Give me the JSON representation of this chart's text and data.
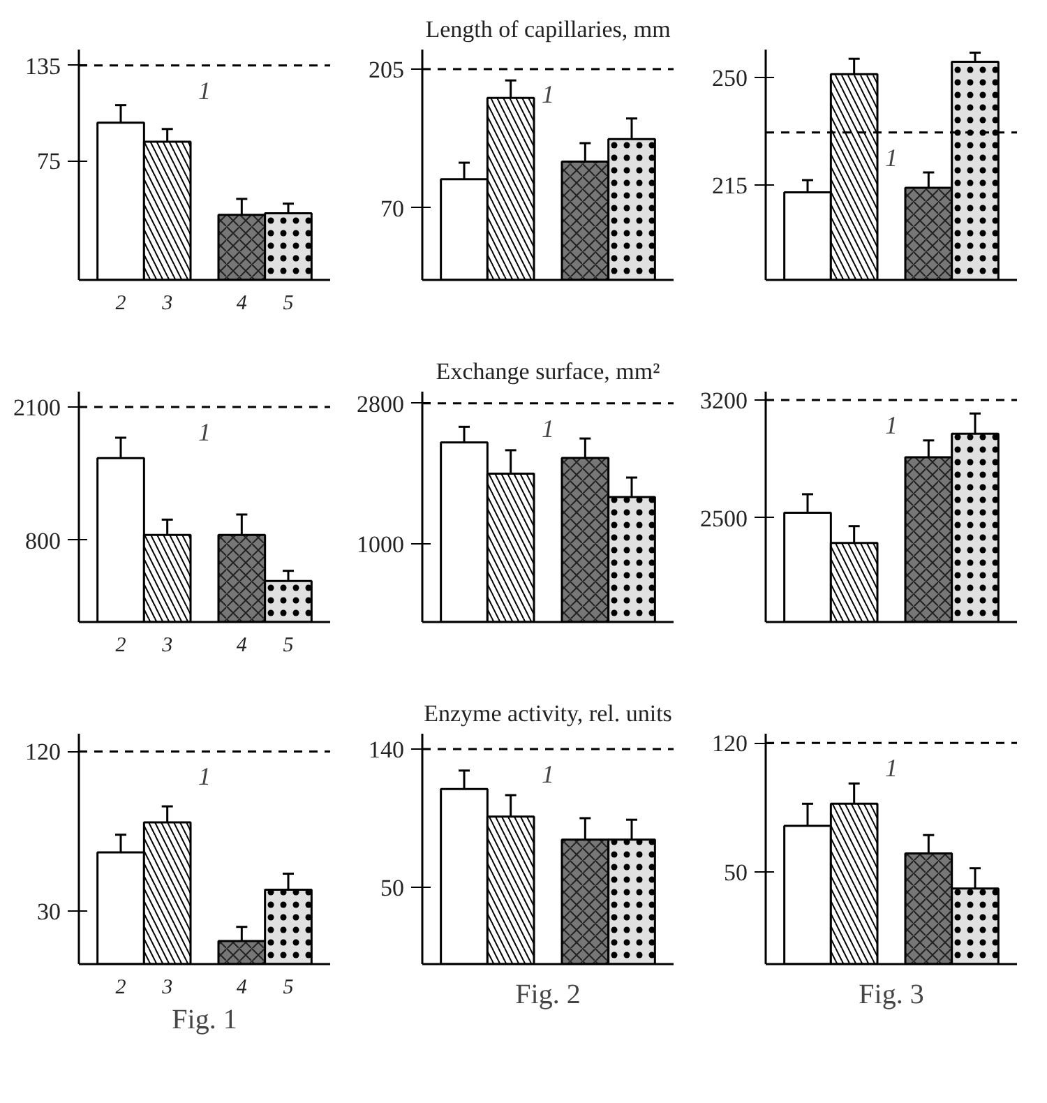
{
  "chart_data": [
    {
      "type": "bar",
      "categories": [
        "2",
        "3",
        "4",
        "5"
      ],
      "values": [
        99,
        87,
        41,
        42
      ],
      "errors": [
        [
          99,
          110
        ],
        [
          87,
          95
        ],
        [
          41,
          51
        ],
        [
          42,
          48
        ]
      ],
      "colors": [
        "#ffffff",
        "#ffffff",
        "#777777",
        "#e0e0e0"
      ],
      "ylim": [
        0,
        145
      ],
      "yticks": [
        75,
        135
      ],
      "ref_lines": [
        {
          "axis": "y",
          "value": 135,
          "line_style": "dashed"
        }
      ],
      "annotations": [
        {
          "text": "1",
          "y": 135
        }
      ],
      "grid": false
    },
    {
      "type": "bar",
      "title": "Length of capillaries, mm",
      "categories": [
        null,
        null,
        null,
        null
      ],
      "values": [
        98,
        177,
        115,
        137
      ],
      "errors": [
        [
          98,
          114
        ],
        [
          177,
          194
        ],
        [
          115,
          133
        ],
        [
          137,
          157
        ]
      ],
      "colors": [
        "#ffffff",
        "#ffffff",
        "#777777",
        "#e0e0e0"
      ],
      "ylim": [
        0,
        224
      ],
      "yticks": [
        70,
        205
      ],
      "tick_labels": "y",
      "ref_lines": [
        {
          "axis": "y",
          "value": 205,
          "line_style": "dashed"
        }
      ],
      "annotations": [
        {
          "text": "1",
          "y": 205
        }
      ],
      "grid": false
    },
    {
      "type": "bar",
      "categories": [
        null,
        null,
        null,
        null
      ],
      "values": [
        212.5,
        251,
        214,
        255
      ],
      "errors": [
        [
          212.5,
          216.5
        ],
        [
          251,
          256
        ],
        [
          214,
          219
        ],
        [
          255,
          258
        ]
      ],
      "colors": [
        "#ffffff",
        "#ffffff",
        "#777777",
        "#e0e0e0"
      ],
      "ylim": [
        184,
        259
      ],
      "yticks": [
        215,
        250
      ],
      "tick_labels": "y",
      "ref_lines": [
        {
          "axis": "y",
          "value": 232,
          "line_style": "dashed"
        }
      ],
      "annotations": [
        {
          "text": "1",
          "y": 232
        }
      ],
      "grid": false
    },
    {
      "type": "bar",
      "categories": [
        "2",
        "3",
        "4",
        "5"
      ],
      "values": [
        1600,
        850,
        850,
        400
      ],
      "errors": [
        [
          1600,
          1800
        ],
        [
          850,
          1000
        ],
        [
          850,
          1050
        ],
        [
          400,
          500
        ]
      ],
      "colors": [
        "#ffffff",
        "#ffffff",
        "#777777",
        "#e0e0e0"
      ],
      "ylim": [
        0,
        2250
      ],
      "yticks": [
        800,
        2100
      ],
      "ref_lines": [
        {
          "axis": "y",
          "value": 2100,
          "line_style": "dashed"
        }
      ],
      "annotations": [
        {
          "text": "1",
          "y": 2100
        }
      ],
      "grid": false
    },
    {
      "type": "bar",
      "title": "Exchange surface, mm²",
      "categories": [
        null,
        null,
        null,
        null
      ],
      "values": [
        2300,
        1900,
        2100,
        1600
      ],
      "errors": [
        [
          2300,
          2500
        ],
        [
          1900,
          2200
        ],
        [
          2100,
          2350
        ],
        [
          1600,
          1850
        ]
      ],
      "colors": [
        "#ffffff",
        "#ffffff",
        "#777777",
        "#e0e0e0"
      ],
      "ylim": [
        0,
        2950
      ],
      "yticks": [
        1000,
        2800
      ],
      "tick_labels": "y",
      "ref_lines": [
        {
          "axis": "y",
          "value": 2800,
          "line_style": "dashed"
        }
      ],
      "annotations": [
        {
          "text": "1",
          "y": 2800
        }
      ],
      "grid": false
    },
    {
      "type": "bar",
      "categories": [
        null,
        null,
        null,
        null
      ],
      "values": [
        2530,
        2350,
        2860,
        3000
      ],
      "errors": [
        [
          2530,
          2640
        ],
        [
          2350,
          2450
        ],
        [
          2860,
          2960
        ],
        [
          3000,
          3120
        ]
      ],
      "colors": [
        "#ffffff",
        "#ffffff",
        "#777777",
        "#e0e0e0"
      ],
      "ylim": [
        1880,
        3250
      ],
      "yticks": [
        2500,
        3200
      ],
      "tick_labels": "y",
      "ref_lines": [
        {
          "axis": "y",
          "value": 3200,
          "line_style": "dashed"
        }
      ],
      "annotations": [
        {
          "text": "1",
          "y": 3200
        }
      ],
      "grid": false
    },
    {
      "type": "bar",
      "xlabel": "Fig. 1",
      "categories": [
        "2",
        "3",
        "4",
        "5"
      ],
      "values": [
        63,
        80,
        13,
        42
      ],
      "errors": [
        [
          63,
          73
        ],
        [
          80,
          89
        ],
        [
          13,
          21
        ],
        [
          42,
          51
        ]
      ],
      "colors": [
        "#ffffff",
        "#ffffff",
        "#777777",
        "#e0e0e0"
      ],
      "ylim": [
        0,
        130
      ],
      "yticks": [
        30,
        120
      ],
      "ref_lines": [
        {
          "axis": "y",
          "value": 120,
          "line_style": "dashed"
        }
      ],
      "annotations": [
        {
          "text": "1",
          "y": 120
        }
      ],
      "grid": false
    },
    {
      "type": "bar",
      "title": "Enzyme activity, rel. units",
      "xlabel": "Fig. 2",
      "categories": [
        null,
        null,
        null,
        null
      ],
      "values": [
        114,
        96,
        81,
        81
      ],
      "errors": [
        [
          114,
          126
        ],
        [
          96,
          110
        ],
        [
          81,
          95
        ],
        [
          81,
          94
        ]
      ],
      "colors": [
        "#ffffff",
        "#ffffff",
        "#777777",
        "#e0e0e0"
      ],
      "ylim": [
        0,
        150
      ],
      "yticks": [
        50,
        140
      ],
      "tick_labels": "y",
      "ref_lines": [
        {
          "axis": "y",
          "value": 140,
          "line_style": "dashed"
        }
      ],
      "annotations": [
        {
          "text": "1",
          "y": 140
        }
      ],
      "grid": false
    },
    {
      "type": "bar",
      "xlabel": "Fig. 3",
      "categories": [
        null,
        null,
        null,
        null
      ],
      "values": [
        75,
        87,
        60,
        41
      ],
      "errors": [
        [
          75,
          87
        ],
        [
          87,
          98
        ],
        [
          60,
          70
        ],
        [
          41,
          52
        ]
      ],
      "colors": [
        "#ffffff",
        "#ffffff",
        "#777777",
        "#e0e0e0"
      ],
      "ylim": [
        0,
        125
      ],
      "yticks": [
        50,
        120
      ],
      "tick_labels": "y",
      "ref_lines": [
        {
          "axis": "y",
          "value": 120,
          "line_style": "dashed"
        }
      ],
      "annotations": [
        {
          "text": "1",
          "y": 120
        }
      ],
      "grid": false
    }
  ]
}
